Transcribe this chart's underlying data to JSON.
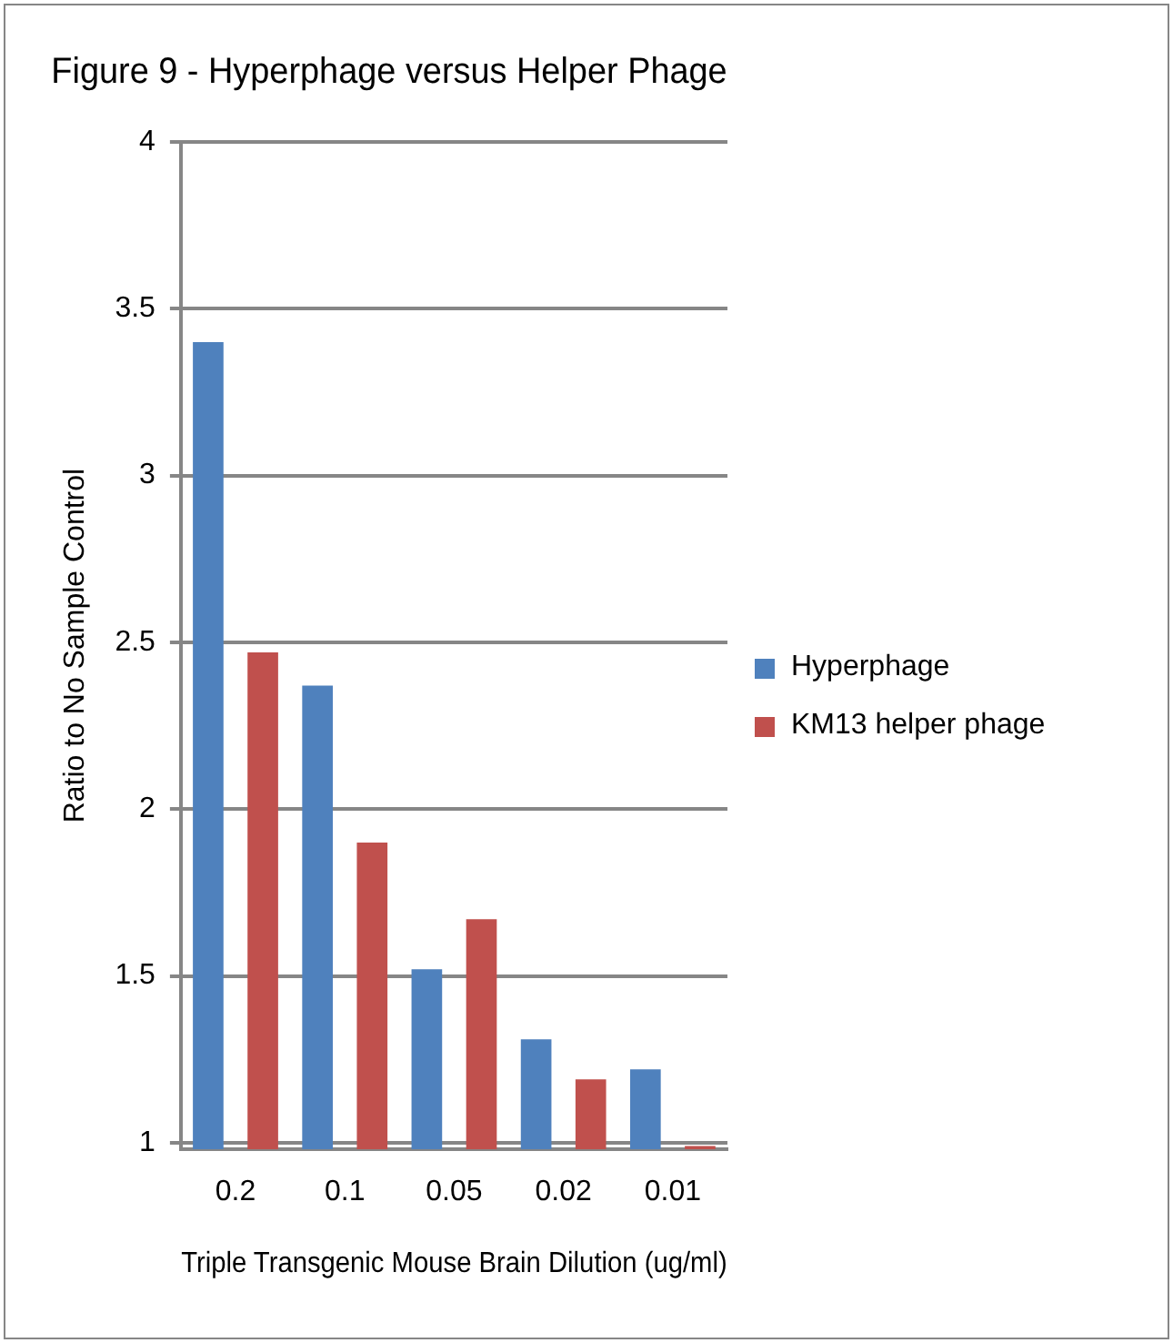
{
  "chart_data": {
    "type": "bar",
    "title": "Figure 9 - Hyperphage versus Helper Phage",
    "xlabel": "Triple Transgenic Mouse Brain Dilution (ug/ml)",
    "ylabel": "Ratio to No Sample Control",
    "categories": [
      "0.2",
      "0.1",
      "0.05",
      "0.02",
      "0.01"
    ],
    "series": [
      {
        "name": "Hyperphage",
        "color": "#4f81bd",
        "values": [
          3.4,
          2.37,
          1.52,
          1.31,
          1.22
        ]
      },
      {
        "name": "KM13 helper phage",
        "color": "#c0504d",
        "values": [
          2.47,
          1.9,
          1.67,
          1.19,
          0.99
        ]
      }
    ],
    "ylim": [
      0.98,
      4
    ],
    "yticks": [
      1,
      1.5,
      2,
      2.5,
      3,
      3.5,
      4
    ],
    "grid": "y",
    "legend": "right"
  }
}
